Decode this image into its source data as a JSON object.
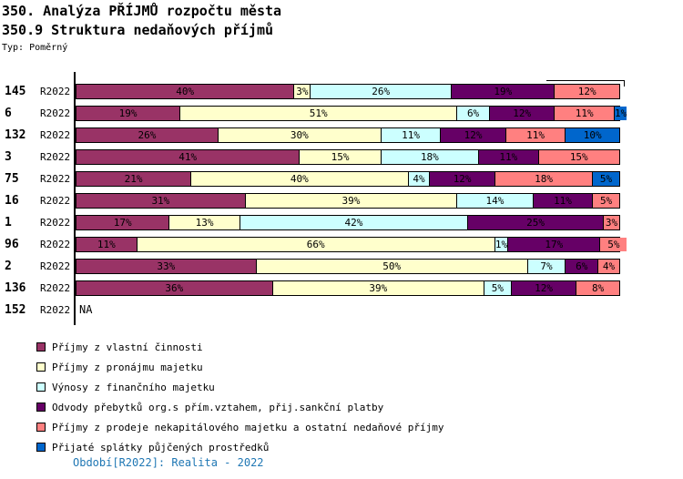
{
  "title": "350. Analýza PŘÍJMŮ rozpočtu města",
  "subtitle": "350.9 Struktura nedaňových příjmů",
  "type_label": "Typ: Poměrný",
  "footer": "Období[R2022]: Realita - 2022",
  "footer_color": "#1F77B4",
  "na_label": "NA",
  "legend": [
    {
      "label": "Příjmy z vlastní činnosti",
      "color": "#993366"
    },
    {
      "label": "Příjmy z pronájmu majetku",
      "color": "#FFFFCC"
    },
    {
      "label": "Výnosy z finančního majetku",
      "color": "#CCFFFF"
    },
    {
      "label": "Odvody přebytků org.s přím.vztahem, přij.sankční platby",
      "color": "#660066"
    },
    {
      "label": "Příjmy z prodeje nekapitálového majetku a ostatní nedaňové příjmy",
      "color": "#FF8080"
    },
    {
      "label": "Přijaté splátky půjčených prostředků",
      "color": "#0066CC"
    }
  ],
  "chart_data": {
    "type": "bar",
    "stacked": true,
    "orientation": "horizontal",
    "unit": "%",
    "xlim": [
      0,
      100
    ],
    "series_names": [
      "Příjmy z vlastní činnosti",
      "Příjmy z pronájmu majetku",
      "Výnosy z finančního majetku",
      "Odvody přebytků org.s přím.vztahem, přij.sankční platby",
      "Příjmy z prodeje nekapitálového majetku a ostatní nedaňové příjmy",
      "Přijaté splátky půjčených prostředků"
    ],
    "series_colors": [
      "#993366",
      "#FFFFCC",
      "#CCFFFF",
      "#660066",
      "#FF8080",
      "#0066CC"
    ],
    "rows": [
      {
        "id": "145",
        "period": "R2022",
        "values": [
          40,
          3,
          26,
          19,
          12,
          0
        ]
      },
      {
        "id": "6",
        "period": "R2022",
        "values": [
          19,
          51,
          6,
          12,
          11,
          1
        ]
      },
      {
        "id": "132",
        "period": "R2022",
        "values": [
          26,
          30,
          11,
          12,
          11,
          10
        ]
      },
      {
        "id": "3",
        "period": "R2022",
        "values": [
          41,
          15,
          18,
          11,
          15,
          0
        ]
      },
      {
        "id": "75",
        "period": "R2022",
        "values": [
          21,
          40,
          4,
          12,
          18,
          5
        ]
      },
      {
        "id": "16",
        "period": "R2022",
        "values": [
          31,
          39,
          14,
          11,
          5,
          0
        ]
      },
      {
        "id": "1",
        "period": "R2022",
        "values": [
          17,
          13,
          42,
          25,
          3,
          0
        ]
      },
      {
        "id": "96",
        "period": "R2022",
        "values": [
          11,
          66,
          1,
          17,
          5,
          0
        ]
      },
      {
        "id": "2",
        "period": "R2022",
        "values": [
          33,
          50,
          7,
          6,
          4,
          0
        ]
      },
      {
        "id": "136",
        "period": "R2022",
        "values": [
          36,
          39,
          5,
          12,
          8,
          0
        ]
      },
      {
        "id": "152",
        "period": "R2022",
        "values": null,
        "na": true
      }
    ]
  }
}
